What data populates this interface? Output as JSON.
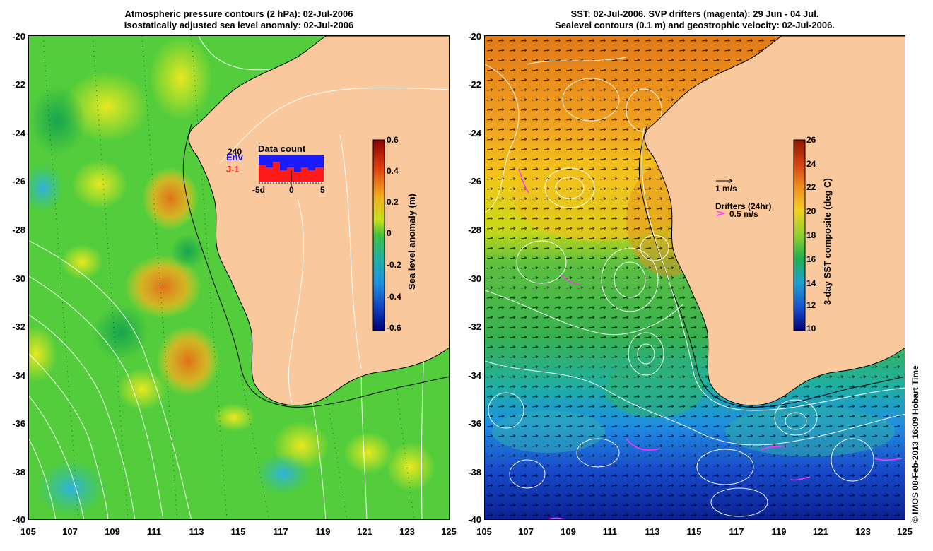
{
  "left_panel": {
    "title_line1": "Atmospheric pressure contours (2 hPa): 02-Jul-2006",
    "title_line2": "Isostatically adjusted sea level anomaly: 02-Jul-2006",
    "colorbar_label": "Sea level anomaly (m)",
    "colorbar_ticks": [
      "0.6",
      "0.4",
      "0.2",
      "0",
      "-0.2",
      "-0.4",
      "-0.6"
    ],
    "inset": {
      "title": "Data count",
      "count": "240",
      "env_label": "Env",
      "j1_label": "J-1",
      "x_ticks": [
        "-5d",
        "0",
        "5"
      ],
      "env_color": "#1a1aff",
      "j1_color": "#ff1a1a"
    }
  },
  "right_panel": {
    "title_line1": "SST: 02-Jul-2006. SVP drifters (magenta): 29 Jun - 04 Jul.",
    "title_line2": "Sealevel contours (0.1 m) and geostrophic velocity: 02-Jul-2006.",
    "colorbar_label": "3-day SST composite (deg C)",
    "colorbar_ticks": [
      "26",
      "24",
      "22",
      "20",
      "18",
      "16",
      "14",
      "12",
      "10"
    ],
    "velocity_scale_label": "1 m/s",
    "drifters_label": "Drifters (24hr)",
    "drifter_scale_label": "0.5 m/s",
    "drifter_color": "#ff33ff"
  },
  "axes": {
    "lat_ticks": [
      "-20",
      "-22",
      "-24",
      "-26",
      "-28",
      "-30",
      "-32",
      "-34",
      "-36",
      "-38",
      "-40"
    ],
    "lon_ticks": [
      "105",
      "107",
      "109",
      "111",
      "113",
      "115",
      "117",
      "119",
      "121",
      "123",
      "125"
    ]
  },
  "credit": "© IMOS 08-Feb-2013 16:09 Hobart Time",
  "colors": {
    "land": "#f9c89c",
    "coast": "#000000",
    "contour": "#ffffff"
  }
}
